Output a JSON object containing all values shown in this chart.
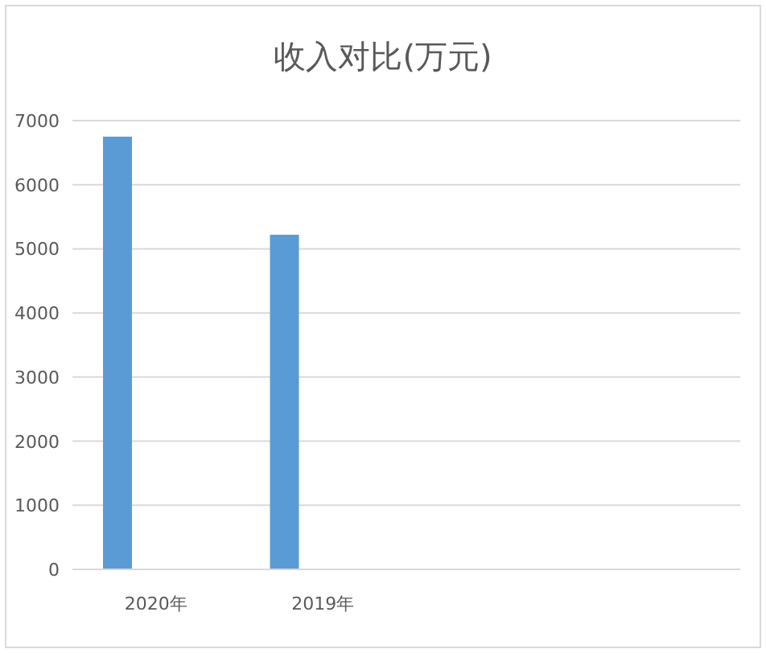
{
  "chart_data": {
    "type": "bar",
    "title": "收入对比(万元)",
    "categories": [
      "2020年",
      "2019年",
      null,
      null
    ],
    "series": [
      {
        "color": "#5b9bd5",
        "values": [
          6750,
          5220,
          null,
          null
        ]
      }
    ],
    "ylim": [
      0,
      7000
    ],
    "yticks": [
      0,
      1000,
      2000,
      3000,
      4000,
      5000,
      6000,
      7000
    ],
    "grid": "y"
  }
}
